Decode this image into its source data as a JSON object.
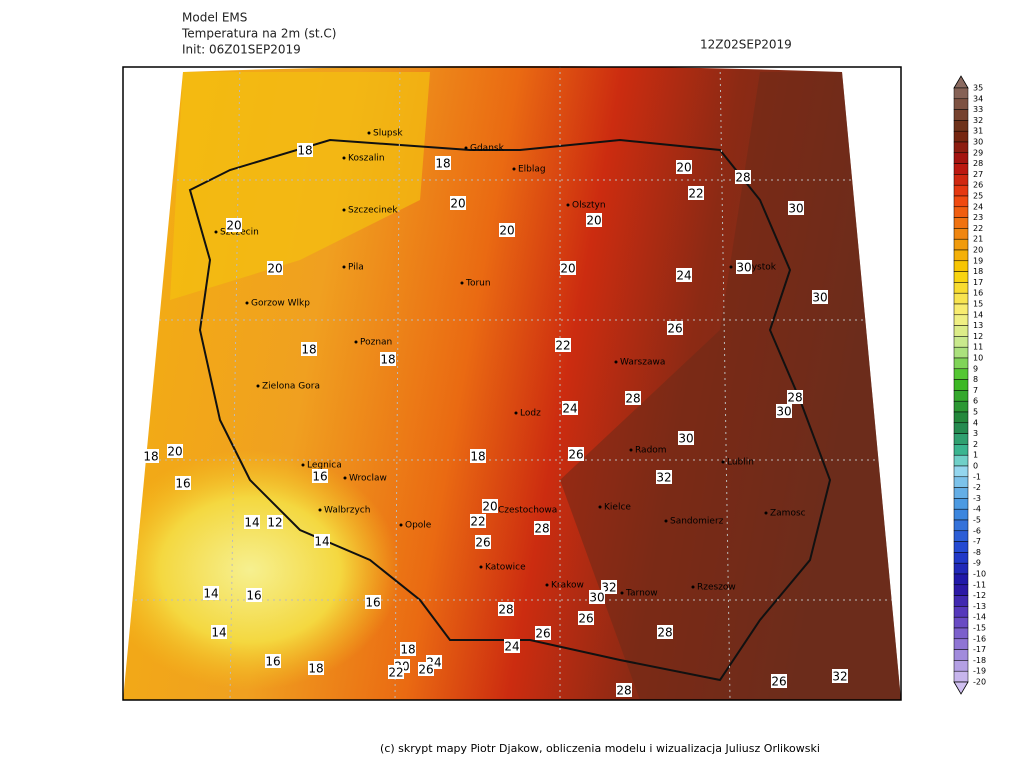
{
  "header": {
    "model": "Model EMS",
    "variable": "Temperatura na 2m (st.C)",
    "init": "Init: 06Z01SEP2019",
    "valid": "12Z02SEP2019"
  },
  "cities": [
    "Slupsk",
    "Gdansk",
    "Koszalin",
    "Elblag",
    "Szczecinek",
    "Olsztyn",
    "Szczecin",
    "Bialystok",
    "Pila",
    "Torun",
    "Gorzow Wlkp",
    "Poznan",
    "Warszawa",
    "Zielona Gora",
    "Lodz",
    "Radom",
    "Legnica",
    "Lublin",
    "Wroclaw",
    "Opole",
    "Kielce",
    "Walbrzych",
    "Czestochowa",
    "Sandomierz",
    "Zamosc",
    "Katowice",
    "Krakow",
    "Tarnow",
    "Rzeszow"
  ],
  "contour_labels": [
    18,
    18,
    20,
    20,
    28,
    22,
    30,
    20,
    20,
    20,
    20,
    20,
    24,
    30,
    30,
    26,
    18,
    18,
    22,
    28,
    30,
    24,
    28,
    30,
    18,
    20,
    26,
    18,
    32,
    16,
    16,
    20,
    14,
    12,
    22,
    28,
    14,
    26,
    32,
    30,
    14,
    16,
    16,
    28,
    26,
    14,
    26,
    28,
    24,
    18,
    16,
    18,
    20,
    24,
    22,
    26,
    32,
    26,
    28
  ],
  "colorbar": [
    35,
    34,
    33,
    32,
    31,
    30,
    29,
    28,
    27,
    26,
    25,
    24,
    23,
    22,
    21,
    20,
    19,
    18,
    17,
    16,
    15,
    14,
    13,
    12,
    11,
    10,
    9,
    8,
    7,
    6,
    5,
    4,
    3,
    2,
    1,
    0,
    -1,
    -2,
    -3,
    -4,
    -5,
    -6,
    -7,
    -8,
    -9,
    -10,
    -11,
    -12,
    -13,
    -14,
    -15,
    -16,
    -17,
    -18,
    -19,
    -20
  ],
  "footer": "(c) skrypt mapy Piotr Djakow, obliczenia modelu i wizualizacja Juliusz Orlikowski"
}
